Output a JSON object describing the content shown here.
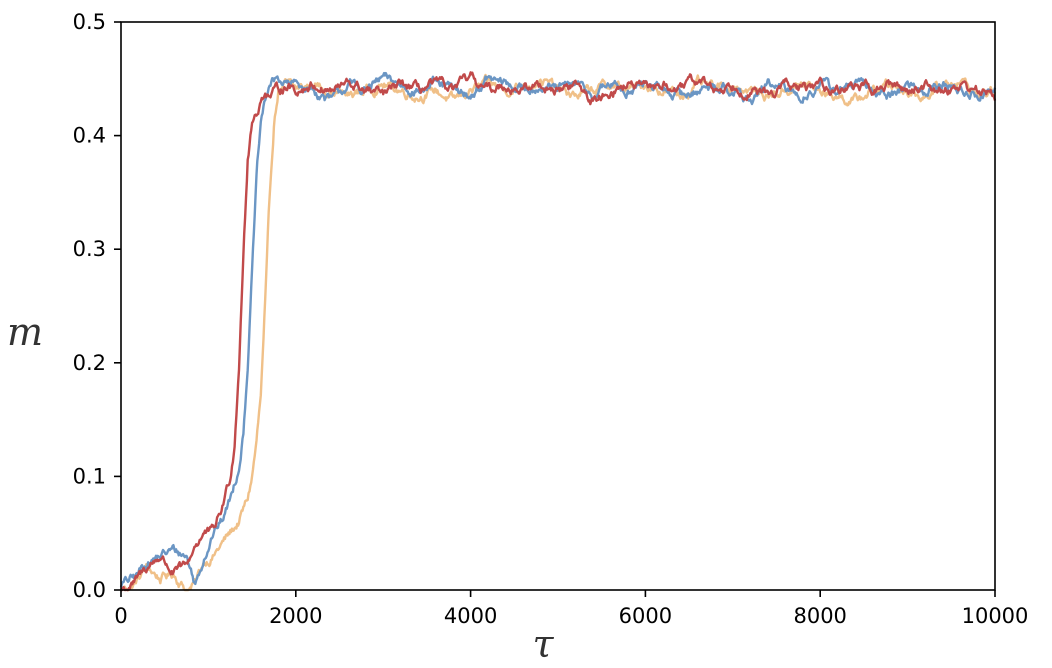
{
  "chart_data": {
    "type": "line",
    "title": "",
    "xlabel": "τ",
    "ylabel": "m",
    "xlim": [
      0,
      10000
    ],
    "ylim": [
      0,
      0.5
    ],
    "x_ticks": [
      0,
      2000,
      4000,
      6000,
      8000,
      10000
    ],
    "x_tick_labels": [
      "0",
      "2000",
      "4000",
      "6000",
      "8000",
      "10000"
    ],
    "y_ticks": [
      0.0,
      0.1,
      0.2,
      0.3,
      0.4,
      0.5
    ],
    "y_tick_labels": [
      "0.0",
      "0.1",
      "0.2",
      "0.3",
      "0.4",
      "0.5"
    ],
    "grid": false,
    "legend": "none",
    "series": [
      {
        "color": "#f0c088",
        "x": [
          0,
          150,
          300,
          450,
          600,
          750,
          850,
          950,
          1050,
          1150,
          1250,
          1350,
          1450,
          1500,
          1550,
          1600,
          1650,
          1700,
          1750,
          1800,
          1900,
          2000,
          2200,
          2400,
          2600,
          2800,
          3000,
          3200,
          3400,
          3600,
          3800,
          4000,
          4200,
          4400,
          4600,
          4800,
          5000,
          5200,
          5400,
          5600,
          5800,
          6000,
          6200,
          6400,
          6600,
          6800,
          7000,
          7200,
          7400,
          7600,
          7800,
          8000,
          8200,
          8400,
          8600,
          8800,
          9000,
          9200,
          9400,
          9600,
          9800,
          10000
        ],
        "y": [
          0.0,
          0.005,
          0.02,
          0.01,
          0.015,
          0.0,
          0.005,
          0.025,
          0.03,
          0.04,
          0.05,
          0.06,
          0.08,
          0.1,
          0.13,
          0.17,
          0.25,
          0.34,
          0.41,
          0.44,
          0.445,
          0.44,
          0.445,
          0.44,
          0.435,
          0.44,
          0.445,
          0.44,
          0.435,
          0.44,
          0.43,
          0.44,
          0.445,
          0.44,
          0.445,
          0.45,
          0.44,
          0.435,
          0.44,
          0.445,
          0.44,
          0.445,
          0.44,
          0.435,
          0.445,
          0.44,
          0.445,
          0.44,
          0.435,
          0.44,
          0.445,
          0.44,
          0.435,
          0.43,
          0.44,
          0.445,
          0.44,
          0.435,
          0.445,
          0.45,
          0.435,
          0.44
        ]
      },
      {
        "color": "#6b96c4",
        "x": [
          0,
          150,
          300,
          450,
          600,
          750,
          850,
          950,
          1050,
          1150,
          1250,
          1350,
          1400,
          1450,
          1500,
          1550,
          1600,
          1650,
          1700,
          1800,
          1900,
          2000,
          2200,
          2400,
          2600,
          2800,
          3000,
          3200,
          3400,
          3600,
          3800,
          4000,
          4200,
          4400,
          4600,
          4800,
          5000,
          5200,
          5400,
          5600,
          5800,
          6000,
          6200,
          6400,
          6600,
          6800,
          7000,
          7200,
          7400,
          7600,
          7800,
          8000,
          8200,
          8400,
          8600,
          8800,
          9000,
          9200,
          9400,
          9600,
          9800,
          10000
        ],
        "y": [
          0.005,
          0.01,
          0.025,
          0.03,
          0.035,
          0.03,
          0.005,
          0.03,
          0.05,
          0.06,
          0.08,
          0.11,
          0.14,
          0.2,
          0.28,
          0.36,
          0.41,
          0.43,
          0.445,
          0.45,
          0.445,
          0.445,
          0.44,
          0.43,
          0.445,
          0.44,
          0.45,
          0.445,
          0.44,
          0.445,
          0.44,
          0.435,
          0.45,
          0.445,
          0.44,
          0.445,
          0.44,
          0.445,
          0.435,
          0.445,
          0.44,
          0.445,
          0.44,
          0.435,
          0.44,
          0.445,
          0.44,
          0.43,
          0.445,
          0.44,
          0.435,
          0.445,
          0.44,
          0.445,
          0.44,
          0.435,
          0.445,
          0.44,
          0.445,
          0.44,
          0.435,
          0.44
        ]
      },
      {
        "color": "#c14a4a",
        "x": [
          0,
          150,
          300,
          450,
          600,
          750,
          850,
          950,
          1050,
          1150,
          1250,
          1300,
          1350,
          1400,
          1450,
          1500,
          1550,
          1600,
          1650,
          1700,
          1800,
          1900,
          2000,
          2200,
          2400,
          2600,
          2800,
          3000,
          3200,
          3400,
          3600,
          3800,
          4000,
          4200,
          4400,
          4600,
          4800,
          5000,
          5200,
          5400,
          5600,
          5800,
          6000,
          6200,
          6400,
          6600,
          6800,
          7000,
          7200,
          7400,
          7600,
          7800,
          8000,
          8200,
          8400,
          8600,
          8800,
          9000,
          9200,
          9400,
          9600,
          9800,
          10000
        ],
        "y": [
          0.0,
          0.005,
          0.02,
          0.03,
          0.015,
          0.02,
          0.04,
          0.05,
          0.05,
          0.07,
          0.1,
          0.13,
          0.2,
          0.3,
          0.38,
          0.41,
          0.42,
          0.43,
          0.44,
          0.435,
          0.44,
          0.445,
          0.44,
          0.445,
          0.44,
          0.445,
          0.44,
          0.435,
          0.445,
          0.44,
          0.445,
          0.44,
          0.45,
          0.44,
          0.445,
          0.44,
          0.445,
          0.44,
          0.445,
          0.43,
          0.44,
          0.445,
          0.44,
          0.445,
          0.44,
          0.45,
          0.44,
          0.445,
          0.44,
          0.435,
          0.445,
          0.44,
          0.445,
          0.44,
          0.445,
          0.44,
          0.445,
          0.44,
          0.445,
          0.44,
          0.445,
          0.44,
          0.435
        ]
      }
    ]
  }
}
